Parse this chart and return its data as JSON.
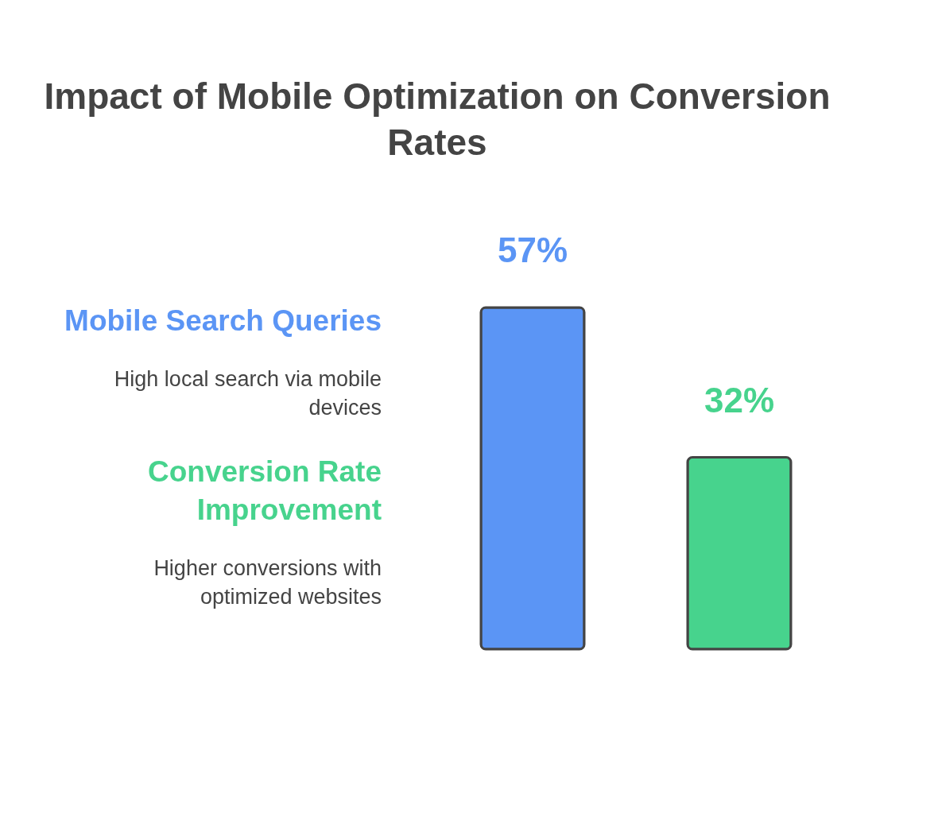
{
  "chart_data": {
    "type": "bar",
    "title": "Impact of Mobile Optimization on Conversion Rates",
    "categories": [
      null,
      null
    ],
    "values": [
      57,
      32
    ],
    "colors": [
      "#5b95f5",
      "#47d38d"
    ],
    "value_labels": [
      "57%",
      "32%"
    ],
    "annotations": [
      "Mobile Search Queries",
      "High local search via mobile devices",
      "Conversion Rate Improvement",
      "Higher conversions with optimized websites"
    ]
  }
}
